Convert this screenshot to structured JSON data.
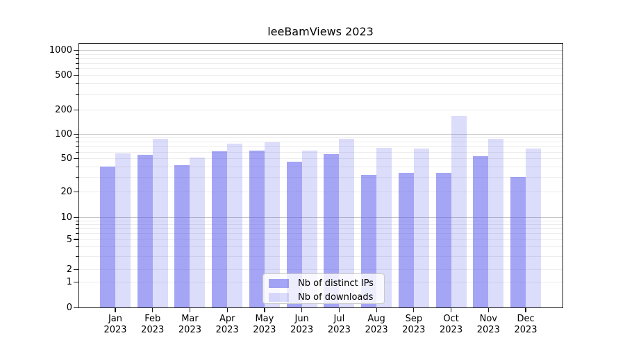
{
  "title": "leeBamViews 2023",
  "chart_data": {
    "type": "bar",
    "title": "leeBamViews 2023",
    "categories": [
      "Jan 2023",
      "Feb 2023",
      "Mar 2023",
      "Apr 2023",
      "May 2023",
      "Jun 2023",
      "Jul 2023",
      "Aug 2023",
      "Sep 2023",
      "Oct 2023",
      "Nov 2023",
      "Dec 2023"
    ],
    "series": [
      {
        "name": "Nb of distinct IPs",
        "color": "rgba(82,82,235,0.52)",
        "values": [
          40,
          55,
          42,
          61,
          62,
          46,
          57,
          32,
          34,
          34,
          53,
          30
        ]
      },
      {
        "name": "Nb of downloads",
        "color": "rgba(82,82,235,0.20)",
        "values": [
          58,
          88,
          51,
          76,
          79,
          62,
          88,
          68,
          66,
          170,
          88,
          66
        ]
      }
    ],
    "xlabel": "",
    "ylabel": "",
    "yscale": "symlog",
    "ylim": [
      0,
      1300
    ],
    "ytick_labels": [
      "0",
      "1",
      "2",
      "5",
      "10",
      "20",
      "50",
      "100",
      "200",
      "500",
      "1000"
    ],
    "ytick_values": [
      0,
      1,
      2,
      5,
      10,
      20,
      50,
      100,
      200,
      500,
      1000
    ],
    "grid": "horizontal-major-and-minor",
    "legend_position": "lower center"
  },
  "colors": {
    "grid_major": "#c6c6c6",
    "grid_minor": "#ededed",
    "spine": "#1a1a1a",
    "text": "#000000",
    "legend_border": "#c9c9c9",
    "bar_series_1": "rgba(82,82,235,0.52)",
    "bar_series_2": "rgba(82,82,235,0.20)"
  }
}
